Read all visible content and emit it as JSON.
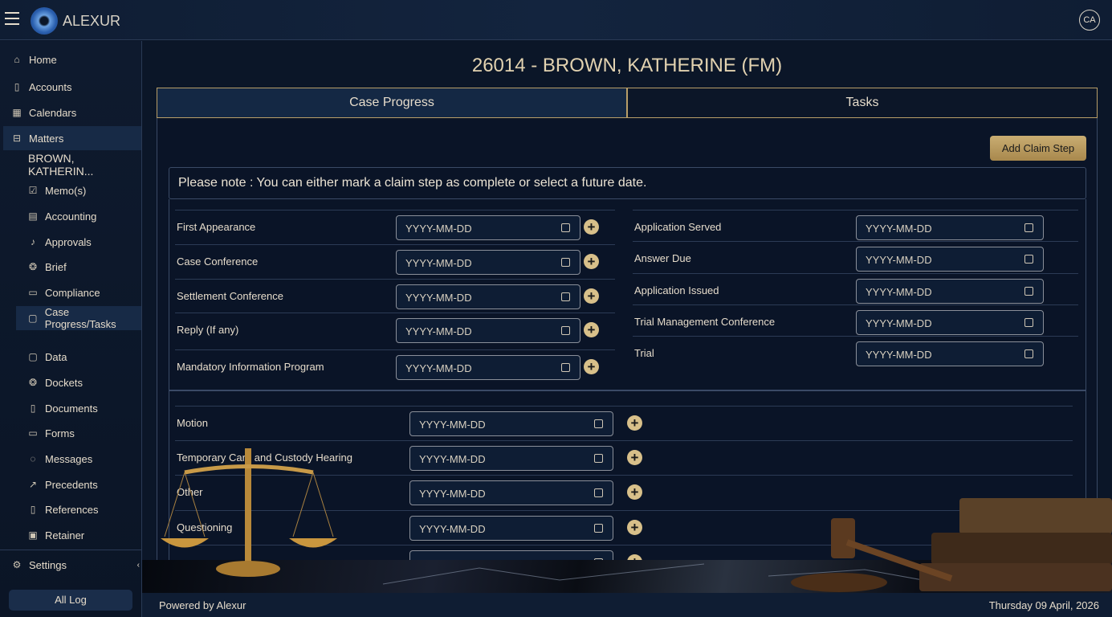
{
  "app": {
    "brand": "ALEXUR",
    "user_initials": "CA"
  },
  "sidebar": {
    "items": [
      {
        "label": "Home",
        "icon": "home-icon"
      },
      {
        "label": "Accounts",
        "icon": "book-icon"
      },
      {
        "label": "Calendars",
        "icon": "calendar-icon"
      },
      {
        "label": "Matters",
        "icon": "folder-icon"
      }
    ],
    "matter_name": "BROWN, KATHERIN...",
    "sub_items": [
      {
        "label": "Memo(s)",
        "icon": "memo-icon"
      },
      {
        "label": "Accounting",
        "icon": "accounting-icon"
      },
      {
        "label": "Approvals",
        "icon": "bell-icon"
      },
      {
        "label": "Brief",
        "icon": "brief-icon"
      },
      {
        "label": "Compliance",
        "icon": "compliance-icon"
      },
      {
        "label": "Case Progress/Tasks",
        "icon": "clipboard-icon"
      },
      {
        "label": "Data",
        "icon": "data-icon"
      },
      {
        "label": "Dockets",
        "icon": "dockets-icon"
      },
      {
        "label": "Documents",
        "icon": "document-icon"
      },
      {
        "label": "Forms",
        "icon": "forms-icon"
      },
      {
        "label": "Messages",
        "icon": "message-icon"
      },
      {
        "label": "Precedents",
        "icon": "trend-icon"
      },
      {
        "label": "References",
        "icon": "reference-icon"
      },
      {
        "label": "Retainer",
        "icon": "retainer-icon"
      }
    ],
    "settings": "Settings",
    "all_log": "All Log"
  },
  "main": {
    "title": "26014 - BROWN, KATHERINE (FM)",
    "tabs": [
      {
        "label": "Case Progress",
        "active": true
      },
      {
        "label": "Tasks",
        "active": false
      }
    ],
    "add_claim_step": "Add Claim Step",
    "note": "Please note : You can either mark a claim step as complete or select a future date.",
    "placeholder": "YYYY-MM-DD",
    "left_steps": [
      "First Appearance",
      "Case Conference",
      "Settlement Conference",
      "Reply (If any)",
      "Mandatory Information Program"
    ],
    "right_steps": [
      "Application Served",
      "Answer Due",
      "Application Issued",
      "Trial Management Conference",
      "Trial"
    ],
    "other_steps": [
      "Motion",
      "Temporary Care and Custody Hearing",
      "Other",
      "Questioning",
      ""
    ]
  },
  "footer": {
    "powered": "Powered by Alexur",
    "date": "Thursday 09 April, 2026"
  },
  "colors": {
    "accent": "#c9ad72",
    "background": "#0b1628"
  }
}
